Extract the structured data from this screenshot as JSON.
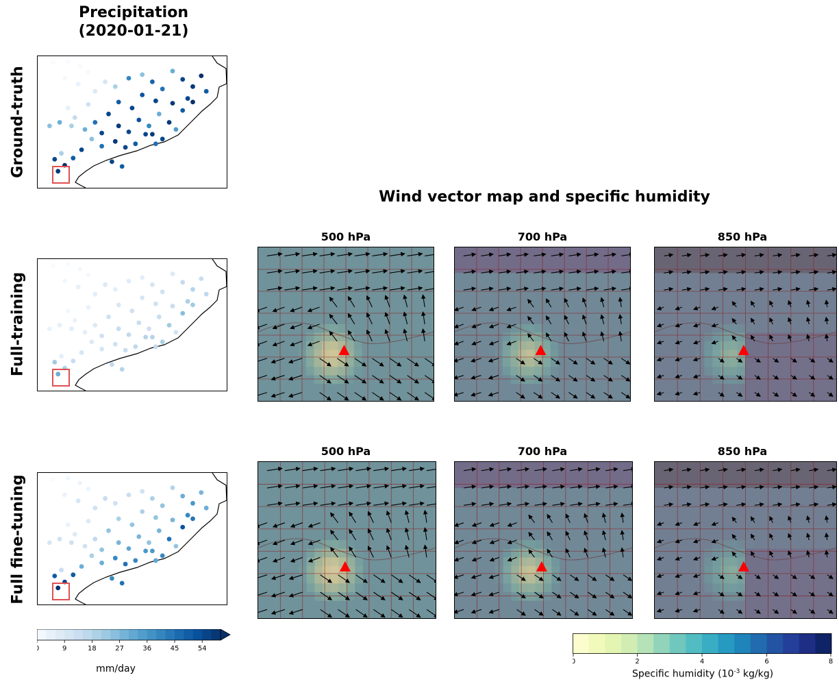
{
  "figure": {
    "precip_title_line1": "Precipitation",
    "precip_title_line2": "(2020-01-21)",
    "wind_title": "Wind vector map and specific humidity",
    "row_labels": [
      "Ground-truth",
      "Full-training",
      "Full fine-tuning"
    ],
    "levels": [
      "500 hPa",
      "700 hPa",
      "850 hPa"
    ],
    "precip_colorbar_label": "mm/day",
    "humidity_colorbar_label_pre": "Specific humidity (10",
    "humidity_colorbar_label_exp": "-3",
    "humidity_colorbar_label_post": " kg/kg)"
  },
  "colors": {
    "map_tint": "#b59a80",
    "grid_line": "#8b2020",
    "marker": "#ff0000",
    "box": "#e05050",
    "coast": "#000000"
  },
  "chart_data": [
    {
      "type": "scatter",
      "title": "Precipitation (2020-01-21)",
      "colorbar": {
        "label": "mm/day",
        "ticks": [
          0,
          9,
          18,
          27,
          36,
          45,
          54
        ],
        "range": [
          0,
          60
        ],
        "colormap": "Blues",
        "extend": "max"
      },
      "panels": [
        {
          "name": "Ground-truth",
          "points": [
            [
              0.05,
              0.02,
              0
            ],
            [
              0.14,
              0.01,
              0
            ],
            [
              0.21,
              0.05,
              0
            ],
            [
              0.26,
              0.1,
              0
            ],
            [
              0.12,
              0.15,
              1
            ],
            [
              0.2,
              0.2,
              4
            ],
            [
              0.3,
              0.26,
              8
            ],
            [
              0.36,
              0.18,
              10
            ],
            [
              0.42,
              0.22,
              20
            ],
            [
              0.5,
              0.15,
              40
            ],
            [
              0.58,
              0.12,
              25
            ],
            [
              0.64,
              0.18,
              48
            ],
            [
              0.7,
              0.24,
              45
            ],
            [
              0.76,
              0.09,
              30
            ],
            [
              0.82,
              0.16,
              55
            ],
            [
              0.88,
              0.22,
              58
            ],
            [
              0.93,
              0.13,
              60
            ],
            [
              0.96,
              0.26,
              50
            ],
            [
              0.85,
              0.32,
              55
            ],
            [
              0.76,
              0.36,
              58
            ],
            [
              0.66,
              0.34,
              55
            ],
            [
              0.58,
              0.29,
              52
            ],
            [
              0.52,
              0.4,
              55
            ],
            [
              0.44,
              0.35,
              50
            ],
            [
              0.38,
              0.45,
              55
            ],
            [
              0.3,
              0.52,
              45
            ],
            [
              0.24,
              0.58,
              30
            ],
            [
              0.34,
              0.61,
              55
            ],
            [
              0.44,
              0.55,
              58
            ],
            [
              0.5,
              0.6,
              55
            ],
            [
              0.56,
              0.5,
              52
            ],
            [
              0.62,
              0.55,
              40
            ],
            [
              0.68,
              0.45,
              30
            ],
            [
              0.74,
              0.52,
              58
            ],
            [
              0.82,
              0.42,
              50
            ],
            [
              0.88,
              0.35,
              60
            ],
            [
              0.6,
              0.62,
              55
            ],
            [
              0.54,
              0.7,
              50
            ],
            [
              0.48,
              0.73,
              55
            ],
            [
              0.42,
              0.68,
              58
            ],
            [
              0.34,
              0.72,
              45
            ],
            [
              0.28,
              0.66,
              25
            ],
            [
              0.22,
              0.75,
              55
            ],
            [
              0.17,
              0.82,
              50
            ],
            [
              0.12,
              0.88,
              60
            ],
            [
              0.08,
              0.93,
              58
            ],
            [
              0.06,
              0.83,
              55
            ],
            [
              0.1,
              0.78,
              20
            ],
            [
              0.03,
              0.55,
              25
            ],
            [
              0.09,
              0.52,
              30
            ],
            [
              0.16,
              0.55,
              20
            ],
            [
              0.4,
              0.85,
              55
            ],
            [
              0.46,
              0.89,
              50
            ],
            [
              0.66,
              0.7,
              45
            ],
            [
              0.7,
              0.66,
              55
            ],
            [
              0.64,
              0.62,
              58
            ],
            [
              0.78,
              0.58,
              35
            ],
            [
              0.26,
              0.37,
              12
            ],
            [
              0.14,
              0.4,
              5
            ],
            [
              0.18,
              0.48,
              15
            ]
          ]
        },
        {
          "name": "Full-training",
          "points": [
            [
              0.05,
              0.02,
              0
            ],
            [
              0.14,
              0.01,
              0
            ],
            [
              0.21,
              0.05,
              1
            ],
            [
              0.26,
              0.1,
              1
            ],
            [
              0.12,
              0.15,
              2
            ],
            [
              0.2,
              0.2,
              5
            ],
            [
              0.3,
              0.26,
              6
            ],
            [
              0.36,
              0.18,
              8
            ],
            [
              0.42,
              0.22,
              6
            ],
            [
              0.5,
              0.15,
              7
            ],
            [
              0.58,
              0.12,
              6
            ],
            [
              0.64,
              0.18,
              10
            ],
            [
              0.7,
              0.24,
              12
            ],
            [
              0.76,
              0.09,
              8
            ],
            [
              0.82,
              0.16,
              15
            ],
            [
              0.88,
              0.22,
              18
            ],
            [
              0.93,
              0.13,
              14
            ],
            [
              0.96,
              0.26,
              16
            ],
            [
              0.85,
              0.32,
              20
            ],
            [
              0.76,
              0.36,
              14
            ],
            [
              0.66,
              0.34,
              12
            ],
            [
              0.58,
              0.29,
              10
            ],
            [
              0.52,
              0.4,
              12
            ],
            [
              0.44,
              0.35,
              10
            ],
            [
              0.38,
              0.45,
              12
            ],
            [
              0.3,
              0.52,
              8
            ],
            [
              0.24,
              0.58,
              6
            ],
            [
              0.34,
              0.61,
              12
            ],
            [
              0.44,
              0.55,
              14
            ],
            [
              0.5,
              0.6,
              16
            ],
            [
              0.56,
              0.5,
              14
            ],
            [
              0.62,
              0.55,
              12
            ],
            [
              0.68,
              0.45,
              14
            ],
            [
              0.74,
              0.52,
              22
            ],
            [
              0.82,
              0.42,
              26
            ],
            [
              0.88,
              0.35,
              22
            ],
            [
              0.6,
              0.62,
              18
            ],
            [
              0.54,
              0.7,
              16
            ],
            [
              0.48,
              0.73,
              14
            ],
            [
              0.42,
              0.68,
              12
            ],
            [
              0.34,
              0.72,
              10
            ],
            [
              0.28,
              0.66,
              8
            ],
            [
              0.22,
              0.75,
              10
            ],
            [
              0.17,
              0.82,
              14
            ],
            [
              0.12,
              0.88,
              20
            ],
            [
              0.08,
              0.93,
              30
            ],
            [
              0.06,
              0.83,
              22
            ],
            [
              0.1,
              0.78,
              6
            ],
            [
              0.03,
              0.55,
              4
            ],
            [
              0.09,
              0.52,
              5
            ],
            [
              0.16,
              0.55,
              6
            ],
            [
              0.4,
              0.85,
              16
            ],
            [
              0.46,
              0.89,
              18
            ],
            [
              0.66,
              0.7,
              16
            ],
            [
              0.7,
              0.66,
              20
            ],
            [
              0.64,
              0.62,
              18
            ],
            [
              0.78,
              0.58,
              12
            ],
            [
              0.26,
              0.37,
              4
            ],
            [
              0.14,
              0.4,
              2
            ],
            [
              0.18,
              0.48,
              4
            ]
          ]
        },
        {
          "name": "Full fine-tuning",
          "points": [
            [
              0.05,
              0.02,
              0
            ],
            [
              0.14,
              0.01,
              2
            ],
            [
              0.21,
              0.05,
              3
            ],
            [
              0.26,
              0.1,
              3
            ],
            [
              0.12,
              0.15,
              4
            ],
            [
              0.2,
              0.2,
              10
            ],
            [
              0.3,
              0.26,
              12
            ],
            [
              0.36,
              0.18,
              14
            ],
            [
              0.42,
              0.22,
              12
            ],
            [
              0.5,
              0.15,
              14
            ],
            [
              0.58,
              0.12,
              12
            ],
            [
              0.64,
              0.18,
              20
            ],
            [
              0.7,
              0.24,
              24
            ],
            [
              0.76,
              0.09,
              18
            ],
            [
              0.82,
              0.16,
              30
            ],
            [
              0.88,
              0.22,
              36
            ],
            [
              0.93,
              0.13,
              28
            ],
            [
              0.96,
              0.26,
              30
            ],
            [
              0.85,
              0.32,
              40
            ],
            [
              0.76,
              0.36,
              28
            ],
            [
              0.66,
              0.34,
              24
            ],
            [
              0.58,
              0.29,
              20
            ],
            [
              0.52,
              0.4,
              24
            ],
            [
              0.44,
              0.35,
              20
            ],
            [
              0.38,
              0.45,
              24
            ],
            [
              0.3,
              0.52,
              16
            ],
            [
              0.24,
              0.58,
              12
            ],
            [
              0.34,
              0.61,
              24
            ],
            [
              0.44,
              0.55,
              28
            ],
            [
              0.5,
              0.6,
              32
            ],
            [
              0.56,
              0.5,
              28
            ],
            [
              0.62,
              0.55,
              24
            ],
            [
              0.68,
              0.45,
              28
            ],
            [
              0.74,
              0.52,
              45
            ],
            [
              0.82,
              0.42,
              52
            ],
            [
              0.88,
              0.35,
              44
            ],
            [
              0.6,
              0.62,
              36
            ],
            [
              0.54,
              0.7,
              40
            ],
            [
              0.48,
              0.73,
              45
            ],
            [
              0.42,
              0.68,
              40
            ],
            [
              0.34,
              0.72,
              30
            ],
            [
              0.28,
              0.66,
              20
            ],
            [
              0.22,
              0.75,
              30
            ],
            [
              0.17,
              0.82,
              50
            ],
            [
              0.12,
              0.88,
              55
            ],
            [
              0.08,
              0.93,
              60
            ],
            [
              0.06,
              0.83,
              50
            ],
            [
              0.1,
              0.78,
              14
            ],
            [
              0.03,
              0.55,
              10
            ],
            [
              0.09,
              0.52,
              12
            ],
            [
              0.16,
              0.55,
              12
            ],
            [
              0.4,
              0.85,
              40
            ],
            [
              0.46,
              0.89,
              45
            ],
            [
              0.66,
              0.7,
              32
            ],
            [
              0.7,
              0.66,
              40
            ],
            [
              0.64,
              0.62,
              36
            ],
            [
              0.78,
              0.58,
              24
            ],
            [
              0.26,
              0.37,
              8
            ],
            [
              0.14,
              0.4,
              4
            ],
            [
              0.18,
              0.48,
              8
            ]
          ]
        }
      ]
    },
    {
      "type": "heatmap",
      "title": "Wind vector map and specific humidity",
      "colorbar": {
        "label": "Specific humidity (10-3 kg/kg)",
        "ticks": [
          0,
          2,
          4,
          6,
          8
        ],
        "range": [
          0,
          8
        ],
        "colormap": "YlGnBu"
      },
      "rows": [
        "Full-training",
        "Full fine-tuning"
      ],
      "columns": [
        "500 hPa",
        "700 hPa",
        "850 hPa"
      ],
      "hotspot": {
        "center": [
          0.42,
          0.7
        ],
        "note": "humidity minimum near red triangle"
      },
      "base_humidity": [
        [
          5.2,
          5.6,
          6.0
        ],
        [
          5.2,
          5.6,
          6.0
        ]
      ],
      "north_band_humidity": [
        [
          5.2,
          7.0,
          7.8
        ],
        [
          5.2,
          7.0,
          7.8
        ]
      ],
      "hotspot_humidity": [
        [
          0.5,
          1.5,
          3.0
        ],
        [
          0.2,
          1.2,
          3.5
        ]
      ]
    }
  ]
}
